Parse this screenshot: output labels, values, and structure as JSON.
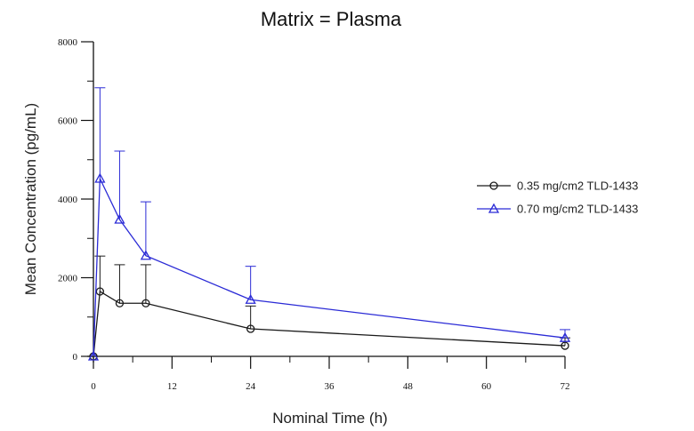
{
  "chart_data": {
    "type": "line",
    "title": "Matrix = Plasma",
    "xlabel": "Nominal Time (h)",
    "ylabel": "Mean Concentration (pg/mL)",
    "xlim": [
      0,
      72
    ],
    "ylim": [
      0,
      8000
    ],
    "xticks": [
      0,
      12,
      24,
      36,
      48,
      60,
      72
    ],
    "yticks": [
      0,
      2000,
      4000,
      6000,
      8000
    ],
    "xtick_labels": [
      "0",
      "12",
      "24",
      "36",
      "48",
      "60",
      "72"
    ],
    "ytick_labels": [
      "0",
      "2000",
      "4000",
      "6000",
      "8000"
    ],
    "grid": false,
    "legend_position": "right",
    "series": [
      {
        "name": "0.35 mg/cm2 TLD-1433",
        "color": "#1a1a1a",
        "marker": "circle",
        "x": [
          0,
          1,
          4,
          8,
          24,
          72
        ],
        "y": [
          0,
          1650,
          1350,
          1350,
          700,
          270
        ],
        "error_upper": [
          0,
          2550,
          2330,
          2330,
          1280,
          470
        ]
      },
      {
        "name": "0.70 mg/cm2 TLD-1433",
        "color": "#2b2bd6",
        "marker": "triangle",
        "x": [
          0,
          1,
          4,
          8,
          24,
          72
        ],
        "y": [
          0,
          4520,
          3480,
          2560,
          1440,
          470
        ],
        "error_upper": [
          0,
          6830,
          5220,
          3930,
          2290,
          680
        ]
      }
    ]
  }
}
